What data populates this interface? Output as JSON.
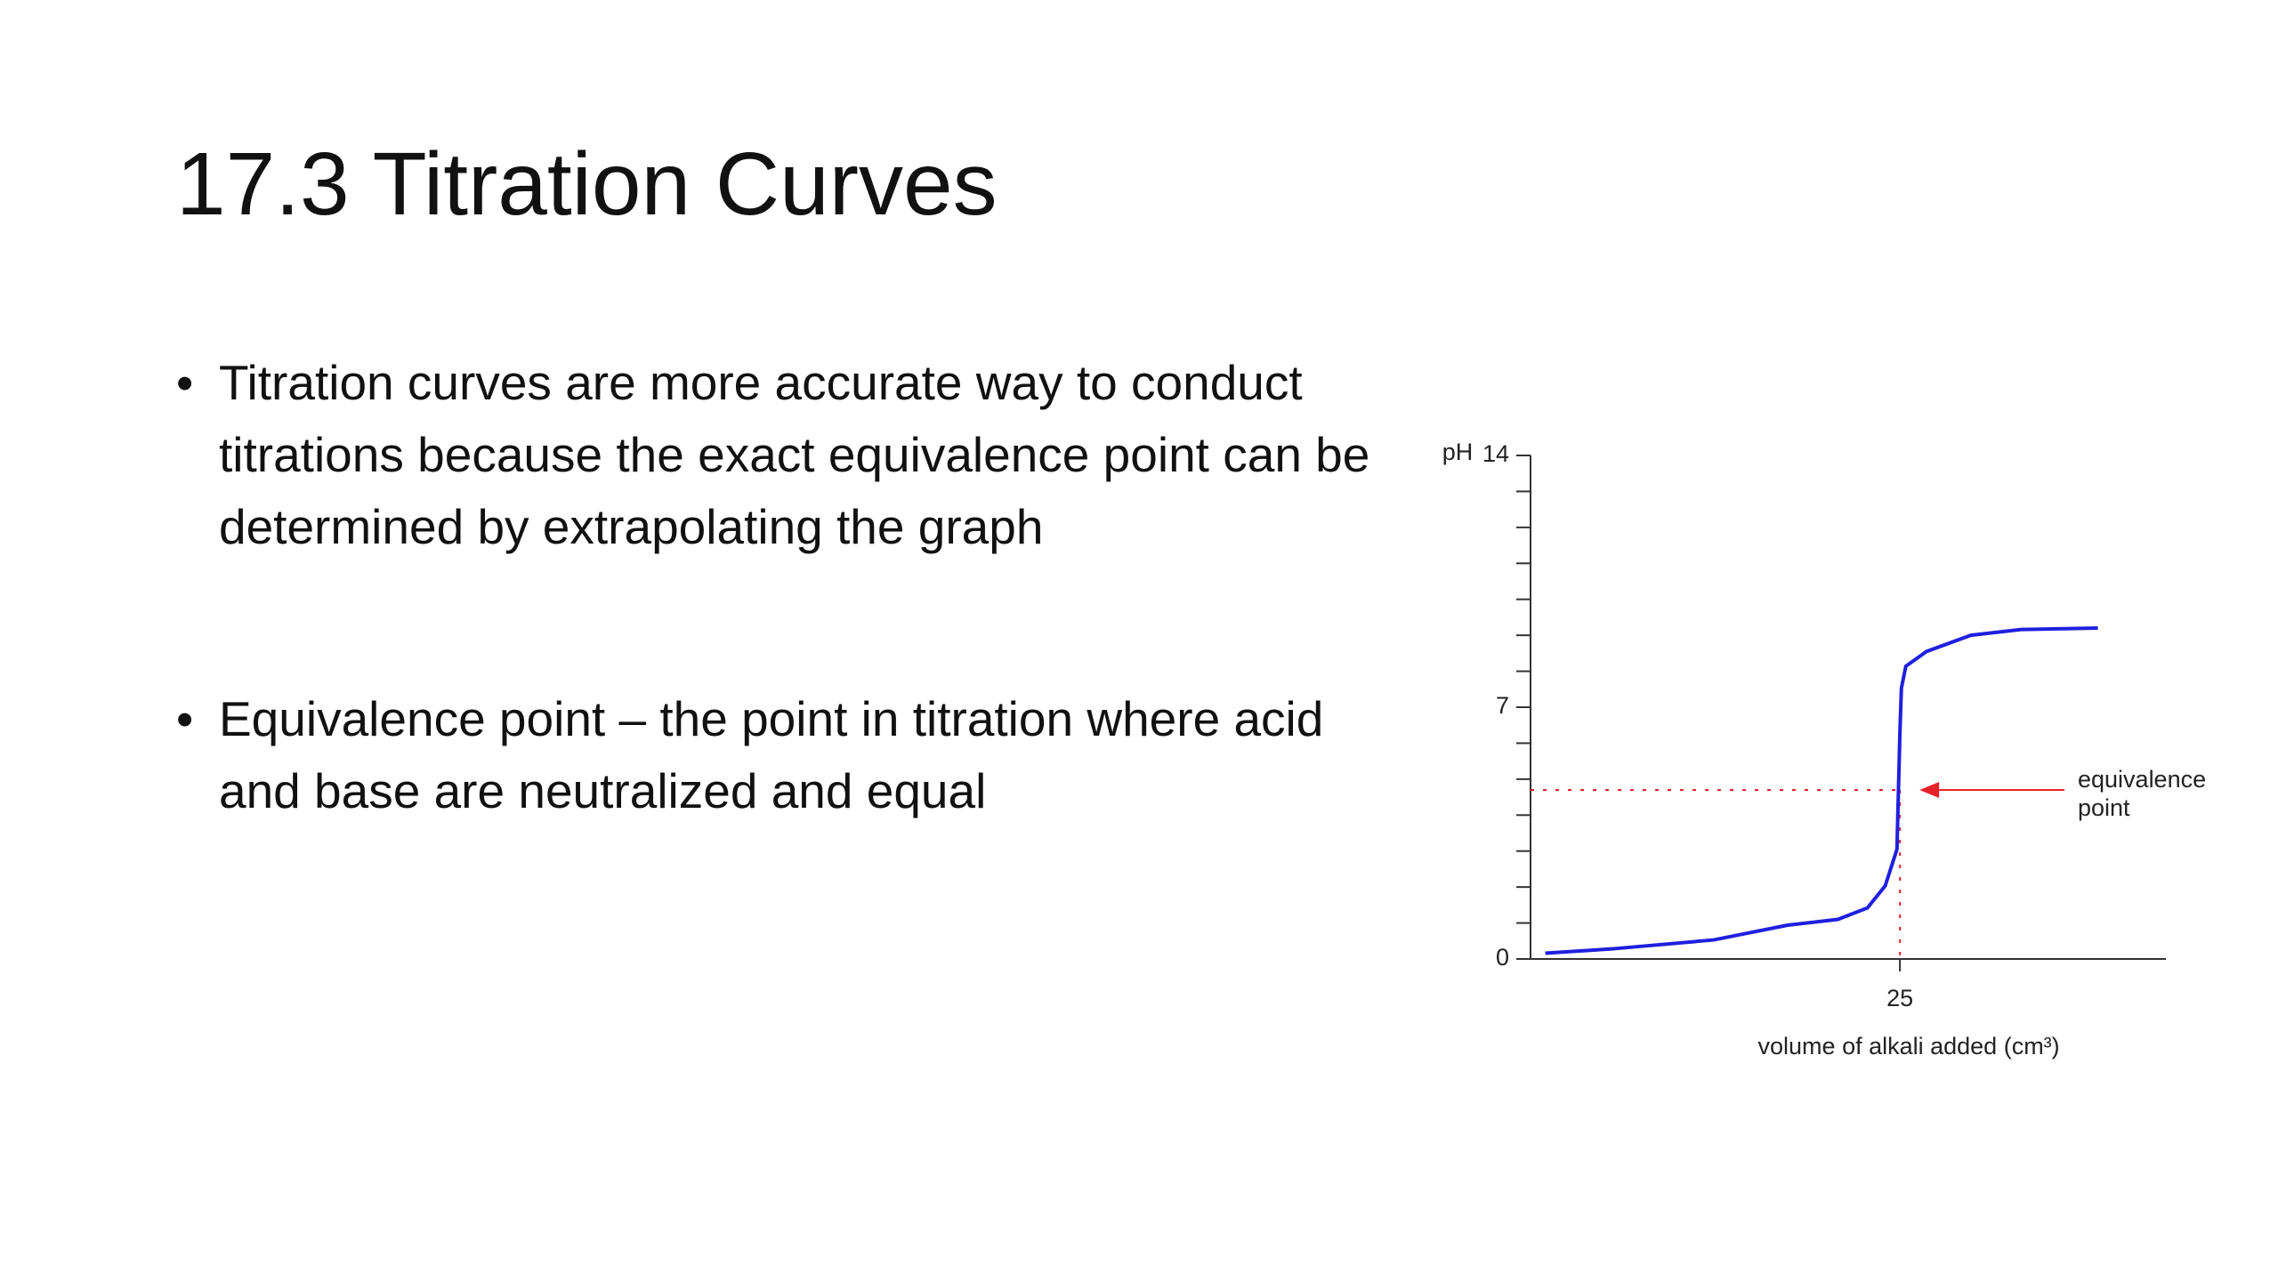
{
  "slide": {
    "title": "17.3 Titration Curves",
    "bullets": [
      "Titration curves are more accurate way to conduct titrations because the exact equivalence point can be determined by extrapolating the graph",
      "Equivalence point – the point in titration where acid and base are neutralized and equal"
    ]
  },
  "chart_data": {
    "type": "line",
    "x_label": "volume of alkali added (cm³)",
    "y_label": "pH",
    "x": [
      1.0,
      5.5,
      12.4,
      17.4,
      20.8,
      22.8,
      24.0,
      24.8,
      24.9,
      25.0,
      25.1,
      25.4,
      26.8,
      29.8,
      33.2,
      38.4
    ],
    "series": [
      {
        "color": "#1f1fe0",
        "values": [
          0.16,
          0.28,
          0.53,
          0.94,
          1.1,
          1.42,
          2.03,
          3.05,
          4.68,
          6.3,
          7.53,
          8.14,
          8.55,
          9.0,
          9.16,
          9.2
        ]
      }
    ],
    "xlim": [
      0,
      43
    ],
    "ylim": [
      0,
      14
    ],
    "xticks": [
      25
    ],
    "yticks": [
      0,
      7,
      14
    ],
    "yminorticks": [
      1,
      2,
      3,
      4,
      5,
      6,
      8,
      9,
      10,
      11,
      12,
      13
    ],
    "annotation": {
      "text": "equivalence point",
      "x": 25,
      "y": 4.7,
      "color": "#e8202a"
    }
  }
}
